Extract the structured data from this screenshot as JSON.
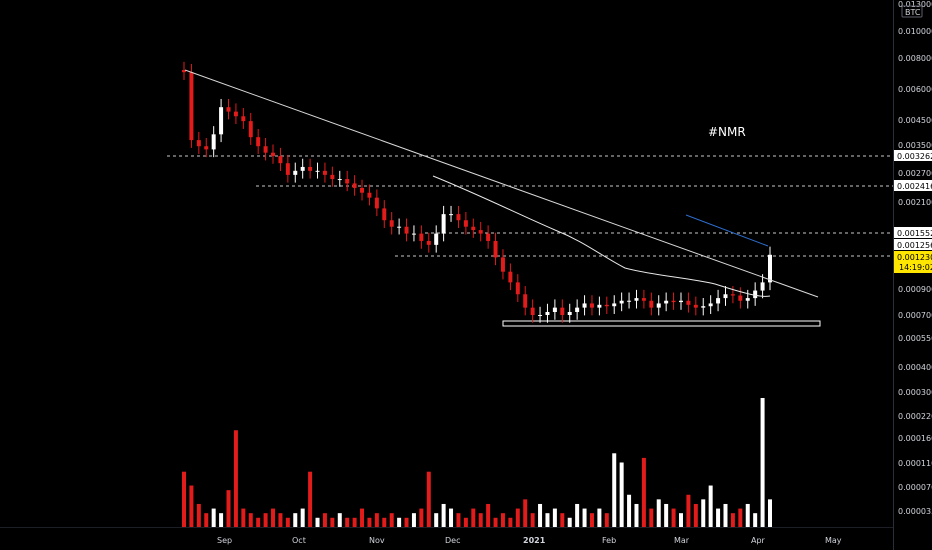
{
  "colors": {
    "background": "#000000",
    "up": "#ffffff",
    "down": "#e21b1b",
    "trendline": "#d9d9d9",
    "channel_line": "#2e6ed0",
    "dashed": "#c8c8c8",
    "last_price_tag": "#ffe600",
    "tag_bg": "#ffffff",
    "tag_text": "#000000"
  },
  "header": {
    "currency": "BTC",
    "top_price": "0.013000"
  },
  "annotation": {
    "symbol": "#NMR"
  },
  "axis": {
    "price_ticks": [
      "0.010000",
      "0.008000",
      "0.006000",
      "0.004500",
      "0.003500",
      "0.002700",
      "0.002100",
      "0.000900",
      "0.000700",
      "0.000550",
      "0.000400",
      "0.000300"
    ],
    "volume_ticks": [
      "0.000220",
      "0.000160",
      "0.000110",
      "0.000070",
      "0.000035"
    ],
    "x_ticks": [
      {
        "label": "Sep",
        "bold": false
      },
      {
        "label": "Oct",
        "bold": false
      },
      {
        "label": "Nov",
        "bold": false
      },
      {
        "label": "Dec",
        "bold": false
      },
      {
        "label": "2021",
        "bold": true
      },
      {
        "label": "Feb",
        "bold": false
      },
      {
        "label": "Mar",
        "bold": false
      },
      {
        "label": "Apr",
        "bold": false
      },
      {
        "label": "May",
        "bold": false
      }
    ]
  },
  "levels": [
    "0.003262",
    "0.002416",
    "0.001552",
    "0.001256"
  ],
  "last_price": {
    "value": "0.001230",
    "countdown": "14:19:02"
  },
  "chart_data": {
    "type": "candlestick",
    "symbol": "#NMR",
    "quote": "BTC",
    "y_scale": "log",
    "period": [
      "2020-08-23",
      "2021-04-05"
    ],
    "horizontal_levels": [
      0.003262,
      0.002416,
      0.001552,
      0.001256
    ],
    "last_price": 0.00123,
    "close_series": [
      0.0068,
      0.0036,
      0.0034,
      0.0033,
      0.0038,
      0.0049,
      0.0047,
      0.0045,
      0.0043,
      0.0037,
      0.0034,
      0.0032,
      0.0031,
      0.0029,
      0.0026,
      0.0027,
      0.0028,
      0.0027,
      0.0027,
      0.0026,
      0.0025,
      0.0025,
      0.0024,
      0.0023,
      0.0022,
      0.0021,
      0.0019,
      0.0017,
      0.0016,
      0.0016,
      0.0015,
      0.0015,
      0.0014,
      0.00135,
      0.0015,
      0.0018,
      0.0018,
      0.0017,
      0.0016,
      0.00155,
      0.0015,
      0.0014,
      0.0012,
      0.00105,
      0.00095,
      0.00085,
      0.00075,
      0.0007,
      0.0007,
      0.00072,
      0.00075,
      0.0007,
      0.00072,
      0.00075,
      0.00078,
      0.00075,
      0.00077,
      0.00076,
      0.00078,
      0.0008,
      0.0008,
      0.00082,
      0.0008,
      0.00075,
      0.00078,
      0.0008,
      0.00079,
      0.0008,
      0.00077,
      0.00075,
      0.00076,
      0.00078,
      0.00082,
      0.00085,
      0.00084,
      0.0008,
      0.00082,
      0.00088,
      0.00095,
      0.00123
    ],
    "volume_series": [
      0.00012,
      9e-05,
      5e-05,
      3e-05,
      4e-05,
      3e-05,
      8e-05,
      0.00021,
      4e-05,
      3e-05,
      2e-05,
      3e-05,
      4e-05,
      3e-05,
      2e-05,
      3e-05,
      4e-05,
      0.00012,
      2e-05,
      3e-05,
      2e-05,
      3e-05,
      2e-05,
      2e-05,
      4e-05,
      2e-05,
      3e-05,
      2e-05,
      3e-05,
      2e-05,
      2e-05,
      3e-05,
      4e-05,
      0.00012,
      3e-05,
      5e-05,
      4e-05,
      3e-05,
      2e-05,
      4e-05,
      3e-05,
      5e-05,
      2e-05,
      3e-05,
      2e-05,
      4e-05,
      6e-05,
      3e-05,
      5e-05,
      3e-05,
      4e-05,
      3e-05,
      2e-05,
      5e-05,
      4e-05,
      3e-05,
      4e-05,
      3e-05,
      0.00016,
      0.00014,
      7e-05,
      5e-05,
      0.00015,
      4e-05,
      6e-05,
      5e-05,
      4e-05,
      3e-05,
      7e-05,
      5e-05,
      6e-05,
      9e-05,
      4e-05,
      5e-05,
      3e-05,
      4e-05,
      5e-05,
      3e-05,
      0.00028,
      6e-05
    ]
  }
}
